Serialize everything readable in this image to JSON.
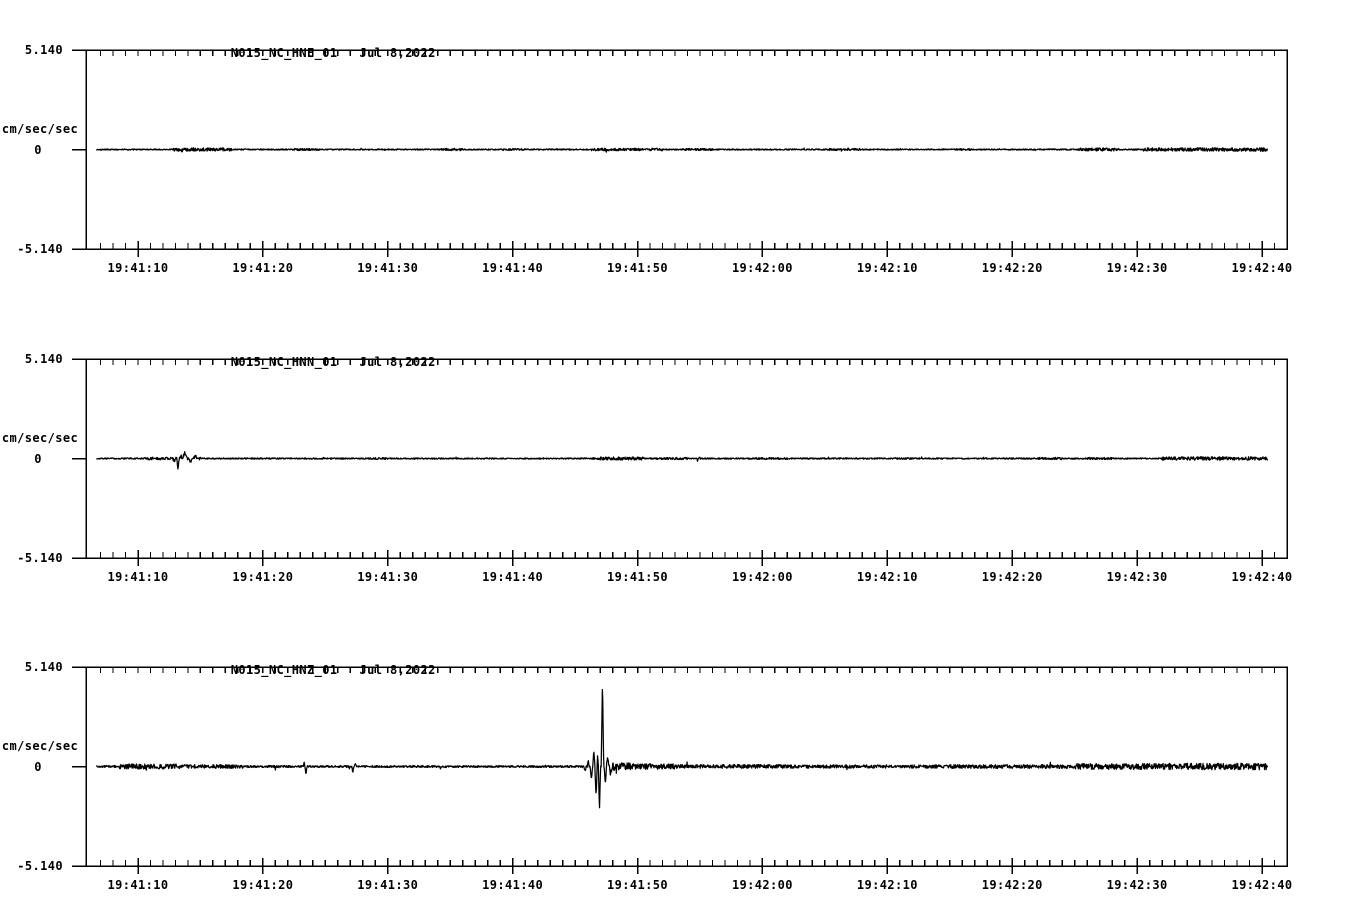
{
  "page": {
    "background_color": "#ffffff",
    "trace_color": "#000000",
    "axis_color": "#000000"
  },
  "chart_data": [
    {
      "type": "line",
      "title": "N015_NC_HNE_01",
      "date": "Jul 8,2022",
      "ylabel": "cm/sec/sec",
      "ylim": [
        -5.14,
        5.14
      ],
      "yticks": {
        "max": "5.140",
        "zero": "0",
        "min": "-5.140"
      },
      "x_axis": {
        "start_s": 5.84,
        "end_s": 102.0,
        "minor_step_s": 1,
        "ticks": [
          {
            "t": 10,
            "label": "19:41:10"
          },
          {
            "t": 20,
            "label": "19:41:20"
          },
          {
            "t": 30,
            "label": "19:41:30"
          },
          {
            "t": 40,
            "label": "19:41:40"
          },
          {
            "t": 50,
            "label": "19:41:50"
          },
          {
            "t": 60,
            "label": "19:42:00"
          },
          {
            "t": 70,
            "label": "19:42:10"
          },
          {
            "t": 80,
            "label": "19:42:20"
          },
          {
            "t": 90,
            "label": "19:42:30"
          },
          {
            "t": 100,
            "label": "19:42:40"
          }
        ]
      },
      "trace": {
        "start_s": 6.7,
        "end_s": 100.45,
        "seed": 101,
        "noise_base": 0.032,
        "noise_bursts": [
          [
            12.8,
            17.5,
            0.085
          ],
          [
            22.5,
            24.5,
            0.055
          ],
          [
            34.3,
            36,
            0.06
          ],
          [
            39.5,
            41,
            0.05
          ],
          [
            46.3,
            52,
            0.065
          ],
          [
            53.5,
            56,
            0.055
          ],
          [
            65.3,
            68,
            0.055
          ],
          [
            75.5,
            77,
            0.045
          ],
          [
            85.3,
            88.5,
            0.08
          ],
          [
            90.5,
            100.45,
            0.09
          ]
        ],
        "spikes": [
          [
            13.5,
            -0.12,
            0.06
          ],
          [
            47.5,
            -0.1,
            0.05
          ],
          [
            87,
            0.1,
            0.05
          ]
        ]
      }
    },
    {
      "type": "line",
      "title": "N015_NC_HNN_01",
      "date": "Jul 8,2022",
      "ylabel": "cm/sec/sec",
      "ylim": [
        -5.14,
        5.14
      ],
      "yticks": {
        "max": "5.140",
        "zero": "0",
        "min": "-5.140"
      },
      "x_axis": {
        "start_s": 5.84,
        "end_s": 102.0,
        "minor_step_s": 1,
        "ticks": [
          {
            "t": 10,
            "label": "19:41:10"
          },
          {
            "t": 20,
            "label": "19:41:20"
          },
          {
            "t": 30,
            "label": "19:41:30"
          },
          {
            "t": 40,
            "label": "19:41:40"
          },
          {
            "t": 50,
            "label": "19:41:50"
          },
          {
            "t": 60,
            "label": "19:42:00"
          },
          {
            "t": 70,
            "label": "19:42:10"
          },
          {
            "t": 80,
            "label": "19:42:20"
          },
          {
            "t": 90,
            "label": "19:42:30"
          },
          {
            "t": 100,
            "label": "19:42:40"
          }
        ]
      },
      "trace": {
        "start_s": 6.7,
        "end_s": 100.45,
        "seed": 202,
        "noise_base": 0.035,
        "noise_bursts": [
          [
            10.5,
            15,
            0.07
          ],
          [
            28.5,
            30,
            0.05
          ],
          [
            46.4,
            50.5,
            0.08
          ],
          [
            51.5,
            54,
            0.055
          ],
          [
            59.5,
            62,
            0.05
          ],
          [
            70.5,
            72,
            0.045
          ],
          [
            82,
            84,
            0.06
          ],
          [
            86,
            88,
            0.055
          ],
          [
            92,
            100.45,
            0.09
          ]
        ],
        "spikes": [
          [
            12.9,
            -0.2,
            0.08
          ],
          [
            13.2,
            -0.58,
            0.1
          ],
          [
            13.45,
            0.15,
            0.08
          ],
          [
            13.75,
            0.3,
            0.2
          ],
          [
            14.2,
            -0.18,
            0.15
          ],
          [
            14.6,
            0.12,
            0.2
          ],
          [
            54.8,
            -0.13,
            0.05
          ],
          [
            54.95,
            0.1,
            0.05
          ]
        ]
      }
    },
    {
      "type": "line",
      "title": "N015_NC_HNZ_01",
      "date": "Jul 8,2022",
      "ylabel": "cm/sec/sec",
      "ylim": [
        -5.14,
        5.14
      ],
      "yticks": {
        "max": "5.140",
        "zero": "0",
        "min": "-5.140"
      },
      "x_axis": {
        "start_s": 5.84,
        "end_s": 102.0,
        "minor_step_s": 1,
        "ticks": [
          {
            "t": 10,
            "label": "19:41:10"
          },
          {
            "t": 20,
            "label": "19:41:20"
          },
          {
            "t": 30,
            "label": "19:41:30"
          },
          {
            "t": 40,
            "label": "19:41:40"
          },
          {
            "t": 50,
            "label": "19:41:50"
          },
          {
            "t": 60,
            "label": "19:42:00"
          },
          {
            "t": 70,
            "label": "19:42:10"
          },
          {
            "t": 80,
            "label": "19:42:20"
          },
          {
            "t": 90,
            "label": "19:42:30"
          },
          {
            "t": 100,
            "label": "19:42:40"
          }
        ]
      },
      "trace": {
        "start_s": 6.7,
        "end_s": 100.45,
        "seed": 303,
        "noise_base": 0.05,
        "noise_bursts": [
          [
            8.5,
            13.5,
            0.13
          ],
          [
            13.5,
            18.5,
            0.095
          ],
          [
            20.5,
            21.5,
            0.065
          ],
          [
            47.7,
            49.5,
            0.19
          ],
          [
            49.5,
            53,
            0.14
          ],
          [
            53,
            62,
            0.1
          ],
          [
            62,
            75,
            0.085
          ],
          [
            75,
            85,
            0.1
          ],
          [
            85,
            92,
            0.15
          ],
          [
            92,
            100.45,
            0.17
          ]
        ],
        "spikes": [
          [
            21.0,
            -0.15,
            0.05
          ],
          [
            23.3,
            0.2,
            0.06
          ],
          [
            23.45,
            -0.42,
            0.08
          ],
          [
            27.2,
            -0.38,
            0.08
          ],
          [
            27.38,
            0.14,
            0.1
          ],
          [
            34.2,
            -0.15,
            0.05
          ],
          [
            45.8,
            -0.25,
            0.1
          ],
          [
            46.05,
            0.3,
            0.08
          ],
          [
            46.3,
            -0.7,
            0.1
          ],
          [
            46.5,
            0.85,
            0.09
          ],
          [
            46.68,
            -1.55,
            0.1
          ],
          [
            46.8,
            0.55,
            0.07
          ],
          [
            46.95,
            -2.3,
            0.09
          ],
          [
            47.19,
            4.45,
            0.1
          ],
          [
            47.42,
            -0.95,
            0.1
          ],
          [
            47.6,
            0.5,
            0.12
          ],
          [
            47.85,
            -0.4,
            0.12
          ]
        ]
      }
    }
  ]
}
